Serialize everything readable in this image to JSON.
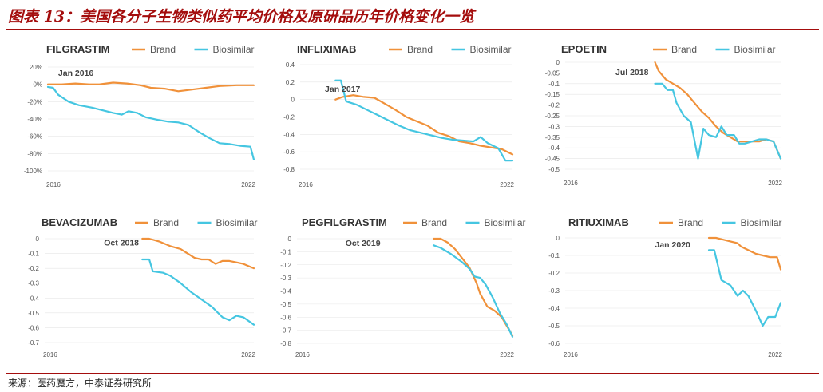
{
  "figure": {
    "title": "图表 13：美国各分子生物类似药平均价格及原研品历年价格变化一览",
    "source": "来源：医药魔方，中泰证券研究所",
    "colors": {
      "accent": "#a40d0d",
      "brand": "#f0913a",
      "biosimilar": "#45c6e1",
      "text": "#333333",
      "grid": "#e6e6e6"
    }
  },
  "chart_data": [
    {
      "type": "line",
      "title": "FILGRASTIM",
      "legend": [
        "Brand",
        "Biosimilar"
      ],
      "ylim": [
        -100,
        20
      ],
      "yticks": [
        "20%",
        "0%",
        "-20%",
        "-40%",
        "-60%",
        "-80%",
        "-100%"
      ],
      "ytick_values": [
        20,
        0,
        -20,
        -40,
        -60,
        -80,
        -100
      ],
      "xlim": [
        2016,
        2022
      ],
      "xticks": [
        "2016",
        "2022"
      ],
      "xtick_values": [
        2016,
        2022
      ],
      "annotation": {
        "text": "Jan 2016",
        "x": 2016.3,
        "y": 10
      },
      "series": [
        {
          "name": "Brand",
          "x": [
            2016.0,
            2016.4,
            2016.8,
            2017.2,
            2017.5,
            2017.9,
            2018.3,
            2018.7,
            2019.0,
            2019.4,
            2019.8,
            2020.2,
            2020.6,
            2021.0,
            2021.5,
            2021.8,
            2022.0
          ],
          "y": [
            0,
            0,
            1,
            0,
            0,
            2,
            1,
            -1,
            -4,
            -5,
            -8,
            -6,
            -4,
            -2,
            -1,
            -1,
            -1
          ]
        },
        {
          "name": "Biosimilar",
          "x": [
            2016.0,
            2016.15,
            2016.3,
            2016.6,
            2016.9,
            2017.3,
            2017.6,
            2017.9,
            2018.15,
            2018.35,
            2018.6,
            2018.85,
            2019.2,
            2019.5,
            2019.8,
            2020.1,
            2020.4,
            2020.7,
            2021.0,
            2021.3,
            2021.6,
            2021.9,
            2022.0
          ],
          "y": [
            -3,
            -4,
            -12,
            -20,
            -24,
            -27,
            -30,
            -33,
            -35,
            -31,
            -33,
            -38,
            -41,
            -43,
            -44,
            -47,
            -55,
            -62,
            -68,
            -69,
            -71,
            -72,
            -87
          ]
        }
      ]
    },
    {
      "type": "line",
      "title": "INFLIXIMAB",
      "legend": [
        "Brand",
        "Biosimilar"
      ],
      "ylim": [
        -0.8,
        0.4
      ],
      "yticks": [
        "0.4",
        "0.2",
        "0",
        "-0.2",
        "-0.4",
        "-0.6",
        "-0.8"
      ],
      "ytick_values": [
        0.4,
        0.2,
        0,
        -0.2,
        -0.4,
        -0.6,
        -0.8
      ],
      "xlim": [
        2016,
        2022
      ],
      "xticks": [
        "2016",
        "2022"
      ],
      "xtick_values": [
        2016,
        2022
      ],
      "annotation": {
        "text": "Jan 2017",
        "x": 2016.7,
        "y": 0.09
      },
      "series": [
        {
          "name": "Brand",
          "x": [
            2017.0,
            2017.2,
            2017.5,
            2017.8,
            2018.1,
            2018.4,
            2018.7,
            2019.0,
            2019.3,
            2019.6,
            2019.9,
            2020.2,
            2020.5,
            2020.8,
            2021.1,
            2021.4,
            2021.7,
            2022.0
          ],
          "y": [
            0.0,
            0.03,
            0.05,
            0.03,
            0.02,
            -0.05,
            -0.12,
            -0.2,
            -0.25,
            -0.3,
            -0.38,
            -0.42,
            -0.48,
            -0.5,
            -0.53,
            -0.55,
            -0.57,
            -0.63
          ]
        },
        {
          "name": "Biosimilar",
          "x": [
            2017.0,
            2017.15,
            2017.3,
            2017.6,
            2017.9,
            2018.2,
            2018.5,
            2018.8,
            2019.1,
            2019.4,
            2019.7,
            2020.0,
            2020.3,
            2020.6,
            2020.9,
            2021.1,
            2021.3,
            2021.6,
            2021.8,
            2022.0
          ],
          "y": [
            0.22,
            0.22,
            -0.02,
            -0.06,
            -0.12,
            -0.18,
            -0.24,
            -0.3,
            -0.35,
            -0.38,
            -0.41,
            -0.44,
            -0.46,
            -0.47,
            -0.48,
            -0.43,
            -0.5,
            -0.56,
            -0.7,
            -0.7
          ]
        }
      ]
    },
    {
      "type": "line",
      "title": "EPOETIN",
      "legend": [
        "Brand",
        "Biosimilar"
      ],
      "ylim": [
        -0.5,
        0
      ],
      "yticks": [
        "0",
        "-0.05",
        "-0.1",
        "-0.15",
        "-0.2",
        "-0.25",
        "-0.3",
        "-0.35",
        "-0.4",
        "-0.45",
        "-0.5"
      ],
      "ytick_values": [
        0,
        -0.05,
        -0.1,
        -0.15,
        -0.2,
        -0.25,
        -0.3,
        -0.35,
        -0.4,
        -0.45,
        -0.5
      ],
      "xlim": [
        2016,
        2022
      ],
      "xticks": [
        "2016",
        "2022"
      ],
      "xtick_values": [
        2016,
        2022
      ],
      "annotation": {
        "text": "Jul 2018",
        "x": 2017.4,
        "y": -0.06
      },
      "series": [
        {
          "name": "Brand",
          "x": [
            2018.5,
            2018.6,
            2018.8,
            2019.0,
            2019.2,
            2019.4,
            2019.6,
            2019.8,
            2020.0,
            2020.2,
            2020.4,
            2020.6,
            2020.8,
            2021.0,
            2021.2,
            2021.4,
            2021.6,
            2021.8,
            2022.0
          ],
          "y": [
            0,
            -0.04,
            -0.08,
            -0.1,
            -0.12,
            -0.15,
            -0.19,
            -0.23,
            -0.26,
            -0.3,
            -0.33,
            -0.35,
            -0.37,
            -0.37,
            -0.37,
            -0.37,
            -0.36,
            -0.37,
            -0.45
          ]
        },
        {
          "name": "Biosimilar",
          "x": [
            2018.5,
            2018.7,
            2018.85,
            2019.0,
            2019.1,
            2019.3,
            2019.5,
            2019.7,
            2019.85,
            2020.0,
            2020.2,
            2020.35,
            2020.5,
            2020.7,
            2020.85,
            2021.0,
            2021.2,
            2021.4,
            2021.6,
            2021.8,
            2022.0
          ],
          "y": [
            -0.1,
            -0.1,
            -0.13,
            -0.13,
            -0.19,
            -0.25,
            -0.28,
            -0.45,
            -0.31,
            -0.34,
            -0.35,
            -0.3,
            -0.34,
            -0.34,
            -0.38,
            -0.38,
            -0.37,
            -0.36,
            -0.36,
            -0.37,
            -0.45
          ]
        }
      ]
    },
    {
      "type": "line",
      "title": "BEVACIZUMAB",
      "legend": [
        "Brand",
        "Biosimilar"
      ],
      "ylim": [
        -0.7,
        0
      ],
      "yticks": [
        "0",
        "-0.1",
        "-0.2",
        "-0.3",
        "-0.4",
        "-0.5",
        "-0.6",
        "-0.7"
      ],
      "ytick_values": [
        0,
        -0.1,
        -0.2,
        -0.3,
        -0.4,
        -0.5,
        -0.6,
        -0.7
      ],
      "xlim": [
        2016,
        2022
      ],
      "xticks": [
        "2016",
        "2022"
      ],
      "xtick_values": [
        2016,
        2022
      ],
      "annotation": {
        "text": "Oct 2018",
        "x": 2017.7,
        "y": -0.045
      },
      "series": [
        {
          "name": "Brand",
          "x": [
            2018.8,
            2019.0,
            2019.3,
            2019.6,
            2019.9,
            2020.1,
            2020.3,
            2020.5,
            2020.7,
            2020.9,
            2021.1,
            2021.3,
            2021.5,
            2021.7,
            2022.0
          ],
          "y": [
            0,
            0,
            -0.02,
            -0.05,
            -0.07,
            -0.1,
            -0.13,
            -0.14,
            -0.14,
            -0.17,
            -0.15,
            -0.15,
            -0.16,
            -0.17,
            -0.2
          ]
        },
        {
          "name": "Biosimilar",
          "x": [
            2018.8,
            2019.0,
            2019.1,
            2019.4,
            2019.6,
            2019.9,
            2020.2,
            2020.5,
            2020.8,
            2021.1,
            2021.3,
            2021.5,
            2021.7,
            2022.0
          ],
          "y": [
            -0.14,
            -0.14,
            -0.22,
            -0.23,
            -0.25,
            -0.3,
            -0.36,
            -0.41,
            -0.46,
            -0.53,
            -0.55,
            -0.52,
            -0.53,
            -0.58
          ]
        }
      ]
    },
    {
      "type": "line",
      "title": "PEGFILGRASTIM",
      "legend": [
        "Brand",
        "Biosimilar"
      ],
      "ylim": [
        -0.8,
        0
      ],
      "yticks": [
        "0",
        "-0.1",
        "-0.2",
        "-0.3",
        "-0.4",
        "-0.5",
        "-0.6",
        "-0.7",
        "-0.8"
      ],
      "ytick_values": [
        0,
        -0.1,
        -0.2,
        -0.3,
        -0.4,
        -0.5,
        -0.6,
        -0.7,
        -0.8
      ],
      "xlim": [
        2016,
        2022
      ],
      "xticks": [
        "2016",
        "2022"
      ],
      "xtick_values": [
        2016,
        2022
      ],
      "annotation": {
        "text": "Oct 2019",
        "x": 2017.35,
        "y": -0.055
      },
      "series": [
        {
          "name": "Brand",
          "x": [
            2019.8,
            2020.0,
            2020.2,
            2020.4,
            2020.6,
            2020.8,
            2021.0,
            2021.1,
            2021.3,
            2021.5,
            2021.7,
            2022.0
          ],
          "y": [
            0,
            0,
            -0.03,
            -0.08,
            -0.15,
            -0.22,
            -0.34,
            -0.42,
            -0.52,
            -0.55,
            -0.6,
            -0.74
          ]
        },
        {
          "name": "Biosimilar",
          "x": [
            2019.8,
            2020.0,
            2020.3,
            2020.6,
            2020.8,
            2020.95,
            2021.1,
            2021.25,
            2021.45,
            2021.65,
            2021.85,
            2022.0
          ],
          "y": [
            -0.05,
            -0.07,
            -0.12,
            -0.18,
            -0.23,
            -0.29,
            -0.3,
            -0.35,
            -0.45,
            -0.57,
            -0.66,
            -0.75
          ]
        }
      ]
    },
    {
      "type": "line",
      "title": "RITIUXIMAB",
      "legend": [
        "Brand",
        "Biosimilar"
      ],
      "ylim": [
        -0.6,
        0
      ],
      "yticks": [
        "0",
        "-0.1",
        "-0.2",
        "-0.3",
        "-0.4",
        "-0.5",
        "-0.6"
      ],
      "ytick_values": [
        0,
        -0.1,
        -0.2,
        -0.3,
        -0.4,
        -0.5,
        -0.6
      ],
      "xlim": [
        2016,
        2022
      ],
      "xticks": [
        "2016",
        "2022"
      ],
      "xtick_values": [
        2016,
        2022
      ],
      "annotation": {
        "text": "Jan 2020",
        "x": 2018.5,
        "y": -0.055
      },
      "series": [
        {
          "name": "Brand",
          "x": [
            2020.0,
            2020.2,
            2020.4,
            2020.6,
            2020.8,
            2020.9,
            2021.1,
            2021.3,
            2021.5,
            2021.7,
            2021.9,
            2022.0
          ],
          "y": [
            0,
            0,
            -0.01,
            -0.02,
            -0.03,
            -0.05,
            -0.07,
            -0.09,
            -0.1,
            -0.11,
            -0.11,
            -0.18
          ]
        },
        {
          "name": "Biosimilar",
          "x": [
            2020.0,
            2020.15,
            2020.35,
            2020.6,
            2020.8,
            2020.95,
            2021.1,
            2021.3,
            2021.5,
            2021.65,
            2021.85,
            2022.0
          ],
          "y": [
            -0.07,
            -0.07,
            -0.24,
            -0.27,
            -0.33,
            -0.3,
            -0.33,
            -0.41,
            -0.5,
            -0.45,
            -0.45,
            -0.37
          ]
        }
      ]
    }
  ]
}
